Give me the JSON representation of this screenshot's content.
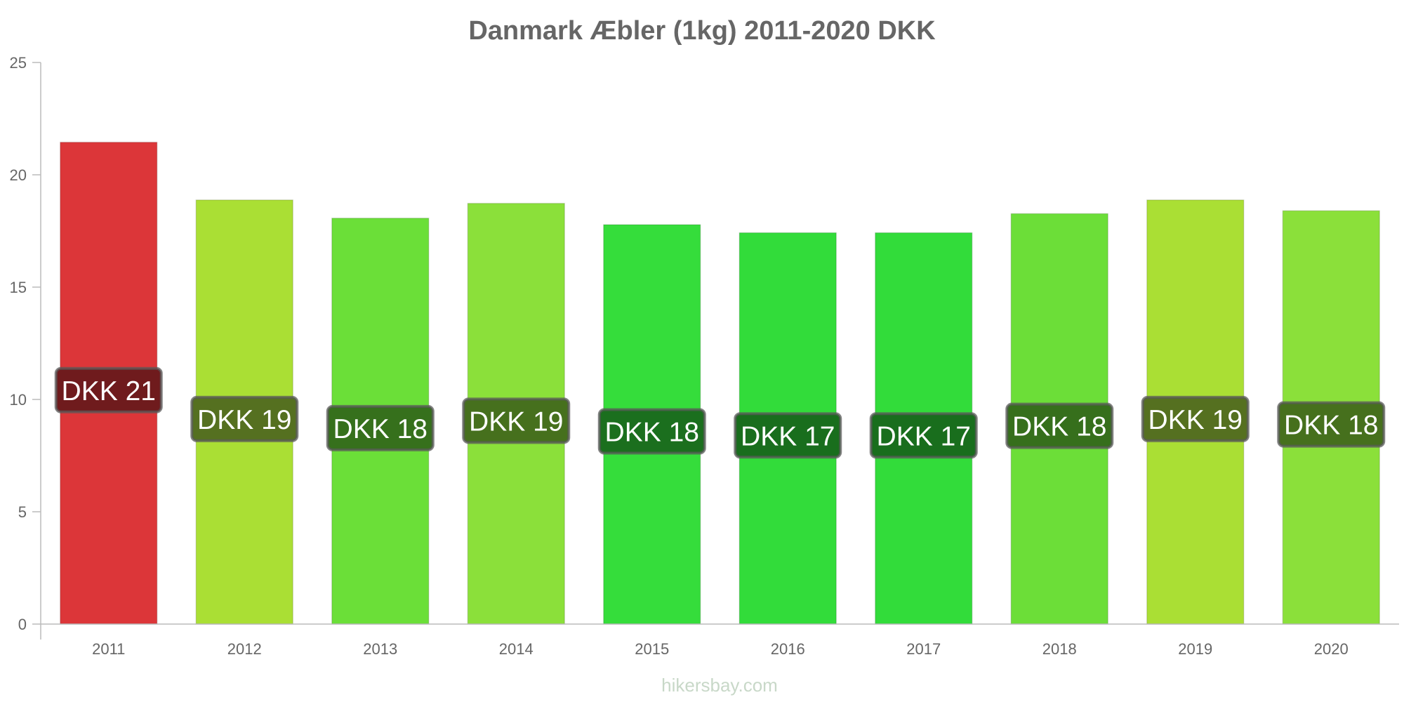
{
  "chart_data": {
    "type": "bar",
    "title": "Danmark Æbler (1kg) 2011-2020 DKK",
    "xlabel": "",
    "ylabel": "",
    "categories": [
      "2011",
      "2012",
      "2013",
      "2014",
      "2015",
      "2016",
      "2017",
      "2018",
      "2019",
      "2020"
    ],
    "values": [
      21.45,
      18.88,
      18.07,
      18.73,
      17.78,
      17.42,
      17.42,
      18.27,
      18.88,
      18.4
    ],
    "data_labels": [
      "DKK 21",
      "DKK 19",
      "DKK 18",
      "DKK 19",
      "DKK 18",
      "DKK 17",
      "DKK 17",
      "DKK 18",
      "DKK 19",
      "DKK 18"
    ],
    "bar_colors": [
      "#dc3639",
      "#aadf34",
      "#6bdf38",
      "#8be03a",
      "#35dd3b",
      "#32dc3a",
      "#32dc3a",
      "#6cde38",
      "#aadf34",
      "#8be03a"
    ],
    "label_bg_colors": [
      "#6f1b1d",
      "#557020",
      "#36701c",
      "#46701d",
      "#1b6f1e",
      "#196e1d",
      "#196e1d",
      "#366f1c",
      "#557020",
      "#46701d"
    ],
    "ylim": [
      0,
      25
    ],
    "yticks": [
      "0",
      "5",
      "10",
      "15",
      "20",
      "25"
    ],
    "grid": false,
    "legend": "none"
  },
  "footer": {
    "source": "hikersbay.com"
  }
}
